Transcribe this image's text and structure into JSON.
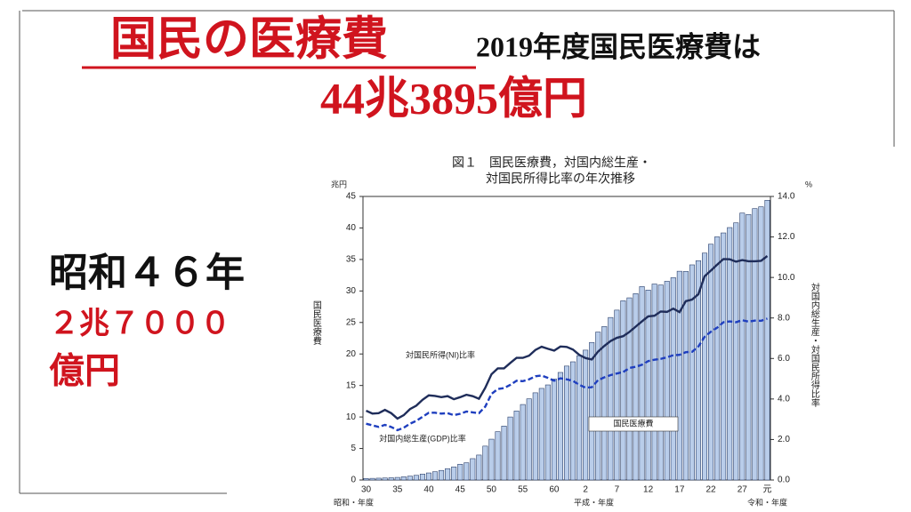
{
  "slide": {
    "title": "国民の医療費",
    "headline": "2019年度国民医療費は",
    "amount": "44兆3895億円",
    "side_year": "昭和４６年",
    "side_amount": "２兆７０００",
    "side_unit": "億円"
  },
  "chart_data": {
    "type": "bar",
    "title": [
      "図１　国民医療費，対国内総生産・",
      "対国民所得比率の年次推移"
    ],
    "ylabel": "国民医療費",
    "yunit": "兆円",
    "y2label": "対国内総生産・対国民所得比率",
    "y2unit": "%",
    "x_groups": [
      "昭和・年度",
      "平成・年度",
      "令和・年度"
    ],
    "categories": [
      "30",
      null,
      null,
      null,
      null,
      "35",
      null,
      null,
      null,
      null,
      "40",
      null,
      null,
      null,
      null,
      "45",
      null,
      null,
      null,
      null,
      "50",
      null,
      null,
      null,
      null,
      "55",
      null,
      null,
      null,
      null,
      "60",
      null,
      null,
      null,
      null,
      "2",
      null,
      null,
      null,
      null,
      "7",
      null,
      null,
      null,
      null,
      "12",
      null,
      null,
      null,
      null,
      "17",
      null,
      null,
      null,
      null,
      "22",
      null,
      null,
      null,
      null,
      "27",
      null,
      null,
      null,
      "元"
    ],
    "ylim": [
      0,
      45
    ],
    "yticks": [
      0,
      5,
      10,
      15,
      20,
      25,
      30,
      35,
      40,
      45
    ],
    "y2lim": [
      0,
      14
    ],
    "y2ticks": [
      {
        "value": 0,
        "label": "0.0"
      },
      {
        "value": 2,
        "label": "2.0"
      },
      {
        "value": 4,
        "label": "4.0"
      },
      {
        "value": 6,
        "label": "6.0"
      },
      {
        "value": 8,
        "label": "8.0"
      },
      {
        "value": 10,
        "label": "10.0"
      },
      {
        "value": 12,
        "label": "12.0"
      },
      {
        "value": 14,
        "label": "14.0"
      }
    ],
    "series": [
      {
        "name": "国民医療費",
        "type": "bar",
        "color": "#b9cdea",
        "values": [
          0.24,
          0.26,
          0.29,
          0.32,
          0.36,
          0.41,
          0.51,
          0.61,
          0.74,
          0.94,
          1.12,
          1.31,
          1.52,
          1.8,
          2.08,
          2.5,
          2.73,
          3.39,
          3.96,
          5.38,
          6.48,
          7.67,
          8.56,
          10.0,
          10.95,
          11.98,
          12.88,
          13.84,
          14.54,
          15.09,
          16.02,
          17.07,
          18.08,
          18.76,
          19.73,
          20.61,
          21.83,
          23.48,
          24.36,
          25.79,
          26.96,
          28.45,
          28.91,
          29.58,
          30.7,
          30.14,
          31.1,
          30.95,
          31.54,
          32.11,
          33.13,
          33.11,
          34.14,
          34.81,
          36.01,
          37.42,
          38.59,
          39.21,
          40.06,
          40.81,
          42.36,
          42.14,
          43.07,
          43.36,
          44.39
        ]
      },
      {
        "name": "対国民所得(NI)比率",
        "type": "line",
        "axis": "y2",
        "color": "#1f2d5a",
        "values": [
          3.42,
          3.28,
          3.3,
          3.46,
          3.3,
          3.03,
          3.2,
          3.5,
          3.67,
          3.96,
          4.18,
          4.15,
          4.09,
          4.14,
          3.99,
          4.09,
          4.21,
          4.14,
          4.01,
          4.55,
          5.22,
          5.51,
          5.51,
          5.78,
          6.03,
          6.03,
          6.14,
          6.42,
          6.58,
          6.48,
          6.39,
          6.59,
          6.57,
          6.44,
          6.18,
          6.02,
          5.95,
          6.34,
          6.62,
          6.86,
          7.02,
          7.1,
          7.31,
          7.57,
          7.83,
          8.08,
          8.11,
          8.32,
          8.3,
          8.46,
          8.29,
          8.83,
          8.91,
          9.17,
          10.06,
          10.34,
          10.63,
          10.91,
          10.9,
          10.78,
          10.86,
          10.8,
          10.8,
          10.82,
          11.06
        ]
      },
      {
        "name": "対国内総生産(GDP)比率",
        "type": "line",
        "axis": "y2",
        "dashed": true,
        "color": "#1f3fbf",
        "values": [
          2.78,
          2.7,
          2.62,
          2.72,
          2.62,
          2.46,
          2.58,
          2.78,
          2.92,
          3.12,
          3.32,
          3.32,
          3.28,
          3.3,
          3.2,
          3.27,
          3.38,
          3.34,
          3.3,
          3.62,
          4.25,
          4.49,
          4.54,
          4.7,
          4.9,
          4.88,
          4.97,
          5.12,
          5.16,
          5.04,
          4.9,
          5.02,
          4.97,
          4.89,
          4.7,
          4.56,
          4.58,
          4.93,
          5.07,
          5.18,
          5.26,
          5.33,
          5.53,
          5.59,
          5.69,
          5.87,
          5.94,
          5.98,
          6.06,
          6.16,
          6.18,
          6.31,
          6.33,
          6.59,
          7.07,
          7.32,
          7.52,
          7.79,
          7.83,
          7.79,
          7.89,
          7.82,
          7.87,
          7.86,
          7.97
        ]
      }
    ]
  }
}
